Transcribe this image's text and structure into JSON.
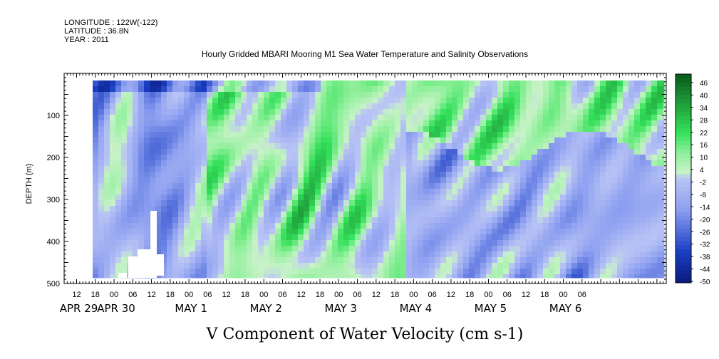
{
  "header": {
    "lines": [
      "LONGITUDE : 122W(-122)",
      "LATITUDE : 36.8N",
      "YEAR : 2011"
    ]
  },
  "chart_data": {
    "type": "heatmap",
    "title": "Hourly Gridded MBARI Mooring M1 Sea Water Temperature and Salinity Observations",
    "xlabel": "V Component of Water Velocity (cm s-1)",
    "ylabel": "DEPTH (m)",
    "ylim": [
      500,
      0
    ],
    "y_ticks": [
      "100",
      "200",
      "300",
      "400",
      "500"
    ],
    "x_hour_ticks": [
      "12",
      "18",
      "00",
      "06",
      "12",
      "18",
      "00",
      "06",
      "12",
      "18",
      "00",
      "06",
      "12",
      "18",
      "00",
      "06",
      "12",
      "18",
      "00",
      "06",
      "12",
      "18",
      "00",
      "06",
      "12",
      "18",
      "00",
      "06"
    ],
    "x_date_ticks": [
      "APR 29",
      "APR 30",
      "MAY  1",
      "MAY  2",
      "MAY  3",
      "MAY  4",
      "MAY  5",
      "MAY  6"
    ],
    "colorbar_labels": [
      "46",
      "40",
      "34",
      "28",
      "22",
      "16",
      "10",
      "4",
      "-2",
      "-8",
      "-14",
      "-20",
      "-26",
      "-32",
      "-38",
      "-44",
      "-50"
    ],
    "color_range": [
      -50,
      50
    ],
    "colors": {
      "neg_strong": "#1a3fc4",
      "neg_mid": "#8d9ff0",
      "neutral": "#c7f2c7",
      "pos_mid": "#33e05a",
      "pos_strong": "#0a5a1a"
    }
  }
}
